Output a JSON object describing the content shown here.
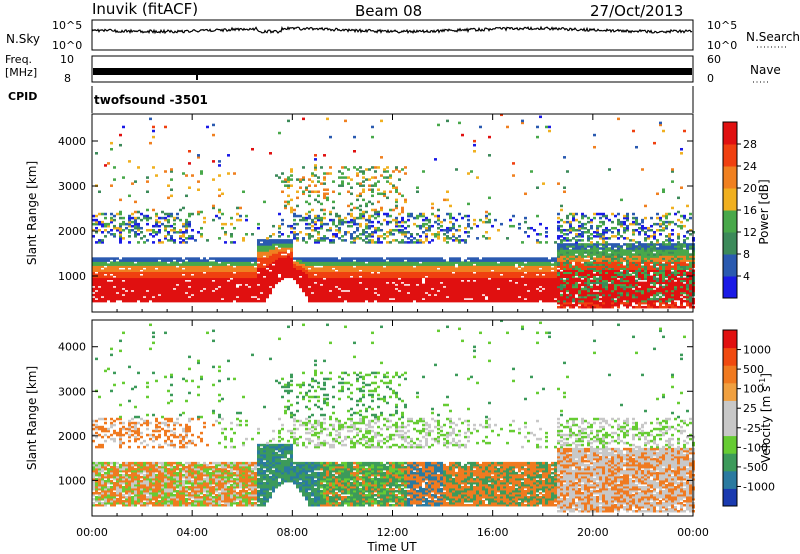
{
  "header": {
    "station": "Inuvik (fitACF)",
    "beam": "Beam 08",
    "date": "27/Oct/2013"
  },
  "top_panels": {
    "nsky_label": "N.Sky",
    "nsky_ticks": [
      "10^5",
      "10^0"
    ],
    "nsearch_label": "N.Search",
    "nsearch_ticks": [
      "10^5",
      "10^0"
    ],
    "freq_label_line1": "Freq.",
    "freq_label_line2": "[MHz]",
    "freq_ticks": [
      "10",
      "8"
    ],
    "nave_label": "Nave",
    "nave_ticks": [
      "60",
      "0"
    ],
    "cpid_label": "CPID",
    "cpid_value": "twofsound -3501"
  },
  "colors": {
    "power": [
      "#1a1ae6",
      "#2a5ab0",
      "#3c8a5a",
      "#48a84a",
      "#f0b020",
      "#f08020",
      "#f04010",
      "#e01010"
    ],
    "velocity": [
      "#e01010",
      "#f04a10",
      "#f07a20",
      "#f0a040",
      "#c8c8c8",
      "#c8c8c8",
      "#66cc33",
      "#3c9a5a",
      "#2a7aa0",
      "#1a3ab0"
    ]
  },
  "chart_data": [
    {
      "type": "heatmap",
      "name": "power",
      "ylabel": "Slant Range [km]",
      "xlabel": "",
      "x_ticks": [
        "00:00",
        "04:00",
        "08:00",
        "12:00",
        "16:00",
        "20:00",
        "00:00"
      ],
      "y_ticks": [
        1000,
        2000,
        3000,
        4000
      ],
      "ylim": [
        200,
        4600
      ],
      "xlim_hours": [
        0,
        24
      ],
      "colorbar_label": "Power [dB]",
      "colorbar_ticks": [
        "4",
        "8",
        "12",
        "16",
        "20",
        "24",
        "28"
      ]
    },
    {
      "type": "heatmap",
      "name": "velocity",
      "ylabel": "Slant Range [km]",
      "xlabel": "Time UT",
      "x_ticks": [
        "00:00",
        "04:00",
        "08:00",
        "12:00",
        "16:00",
        "20:00",
        "00:00"
      ],
      "y_ticks": [
        1000,
        2000,
        3000,
        4000
      ],
      "ylim": [
        200,
        4600
      ],
      "xlim_hours": [
        0,
        24
      ],
      "colorbar_label": "Velocity [m s",
      "colorbar_label_sup": "-1",
      "colorbar_label_end": "]",
      "colorbar_ticks": [
        "1000",
        "500",
        "100",
        "25",
        "-25",
        "-100",
        "-500",
        "-1000"
      ]
    }
  ]
}
